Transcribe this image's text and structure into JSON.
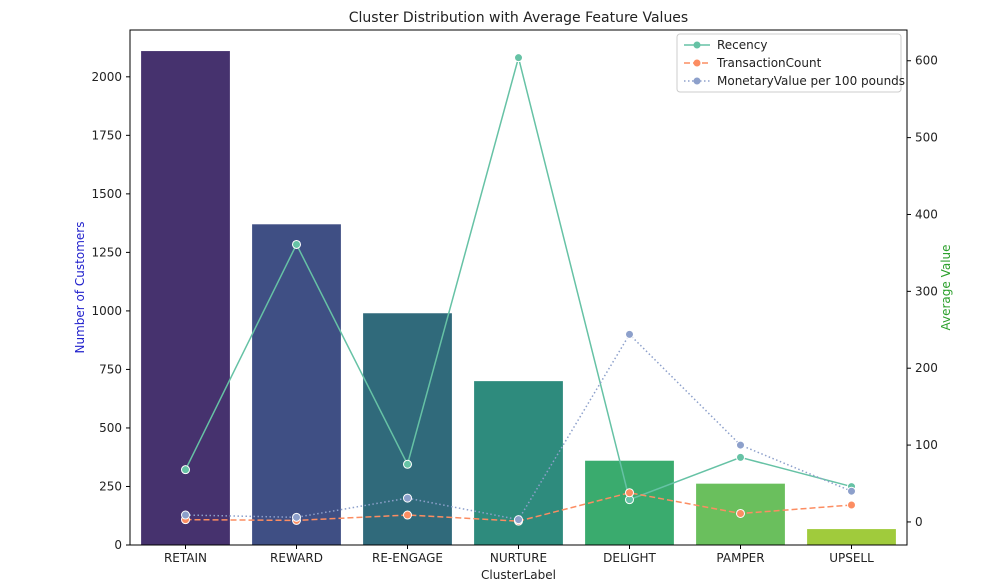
{
  "chart_data": {
    "type": "bar",
    "title": "Cluster Distribution with Average Feature Values",
    "xlabel": "ClusterLabel",
    "ylabel": "Number of Customers",
    "y2label": "Average Value",
    "categories": [
      "RETAIN",
      "REWARD",
      "RE-ENGAGE",
      "NURTURE",
      "DELIGHT",
      "PAMPER",
      "UPSELL"
    ],
    "bars": {
      "values": [
        2110,
        1370,
        990,
        700,
        360,
        262,
        68
      ],
      "colors": [
        "#46326e",
        "#3f4f84",
        "#306a7b",
        "#2e8b7d",
        "#3aab6e",
        "#6abf5d",
        "#a0cb3c"
      ]
    },
    "ylim": [
      0,
      2200
    ],
    "yticks": [
      0,
      250,
      500,
      750,
      1000,
      1250,
      1500,
      1750,
      2000
    ],
    "y2lim": [
      -30,
      640
    ],
    "y2ticks": [
      0,
      100,
      200,
      300,
      400,
      500,
      600
    ],
    "series": [
      {
        "name": "Recency",
        "axis": "right",
        "values": [
          68,
          361,
          75,
          604,
          29,
          84,
          46
        ],
        "color": "#66c2a5",
        "style": "solid"
      },
      {
        "name": "TransactionCount",
        "axis": "right",
        "values": [
          3,
          2,
          9,
          1,
          38,
          11,
          22
        ],
        "color": "#fc8d62",
        "style": "dashed"
      },
      {
        "name": "MonetaryValue per 100 pounds",
        "axis": "right",
        "values": [
          9,
          6,
          31,
          3,
          244,
          100,
          40
        ],
        "color": "#8da0cb",
        "style": "dotted"
      }
    ],
    "legend_position": "top-right",
    "grid": false,
    "ylabel_color": "#1f1fcc",
    "y2label_color": "#2ca02c"
  }
}
